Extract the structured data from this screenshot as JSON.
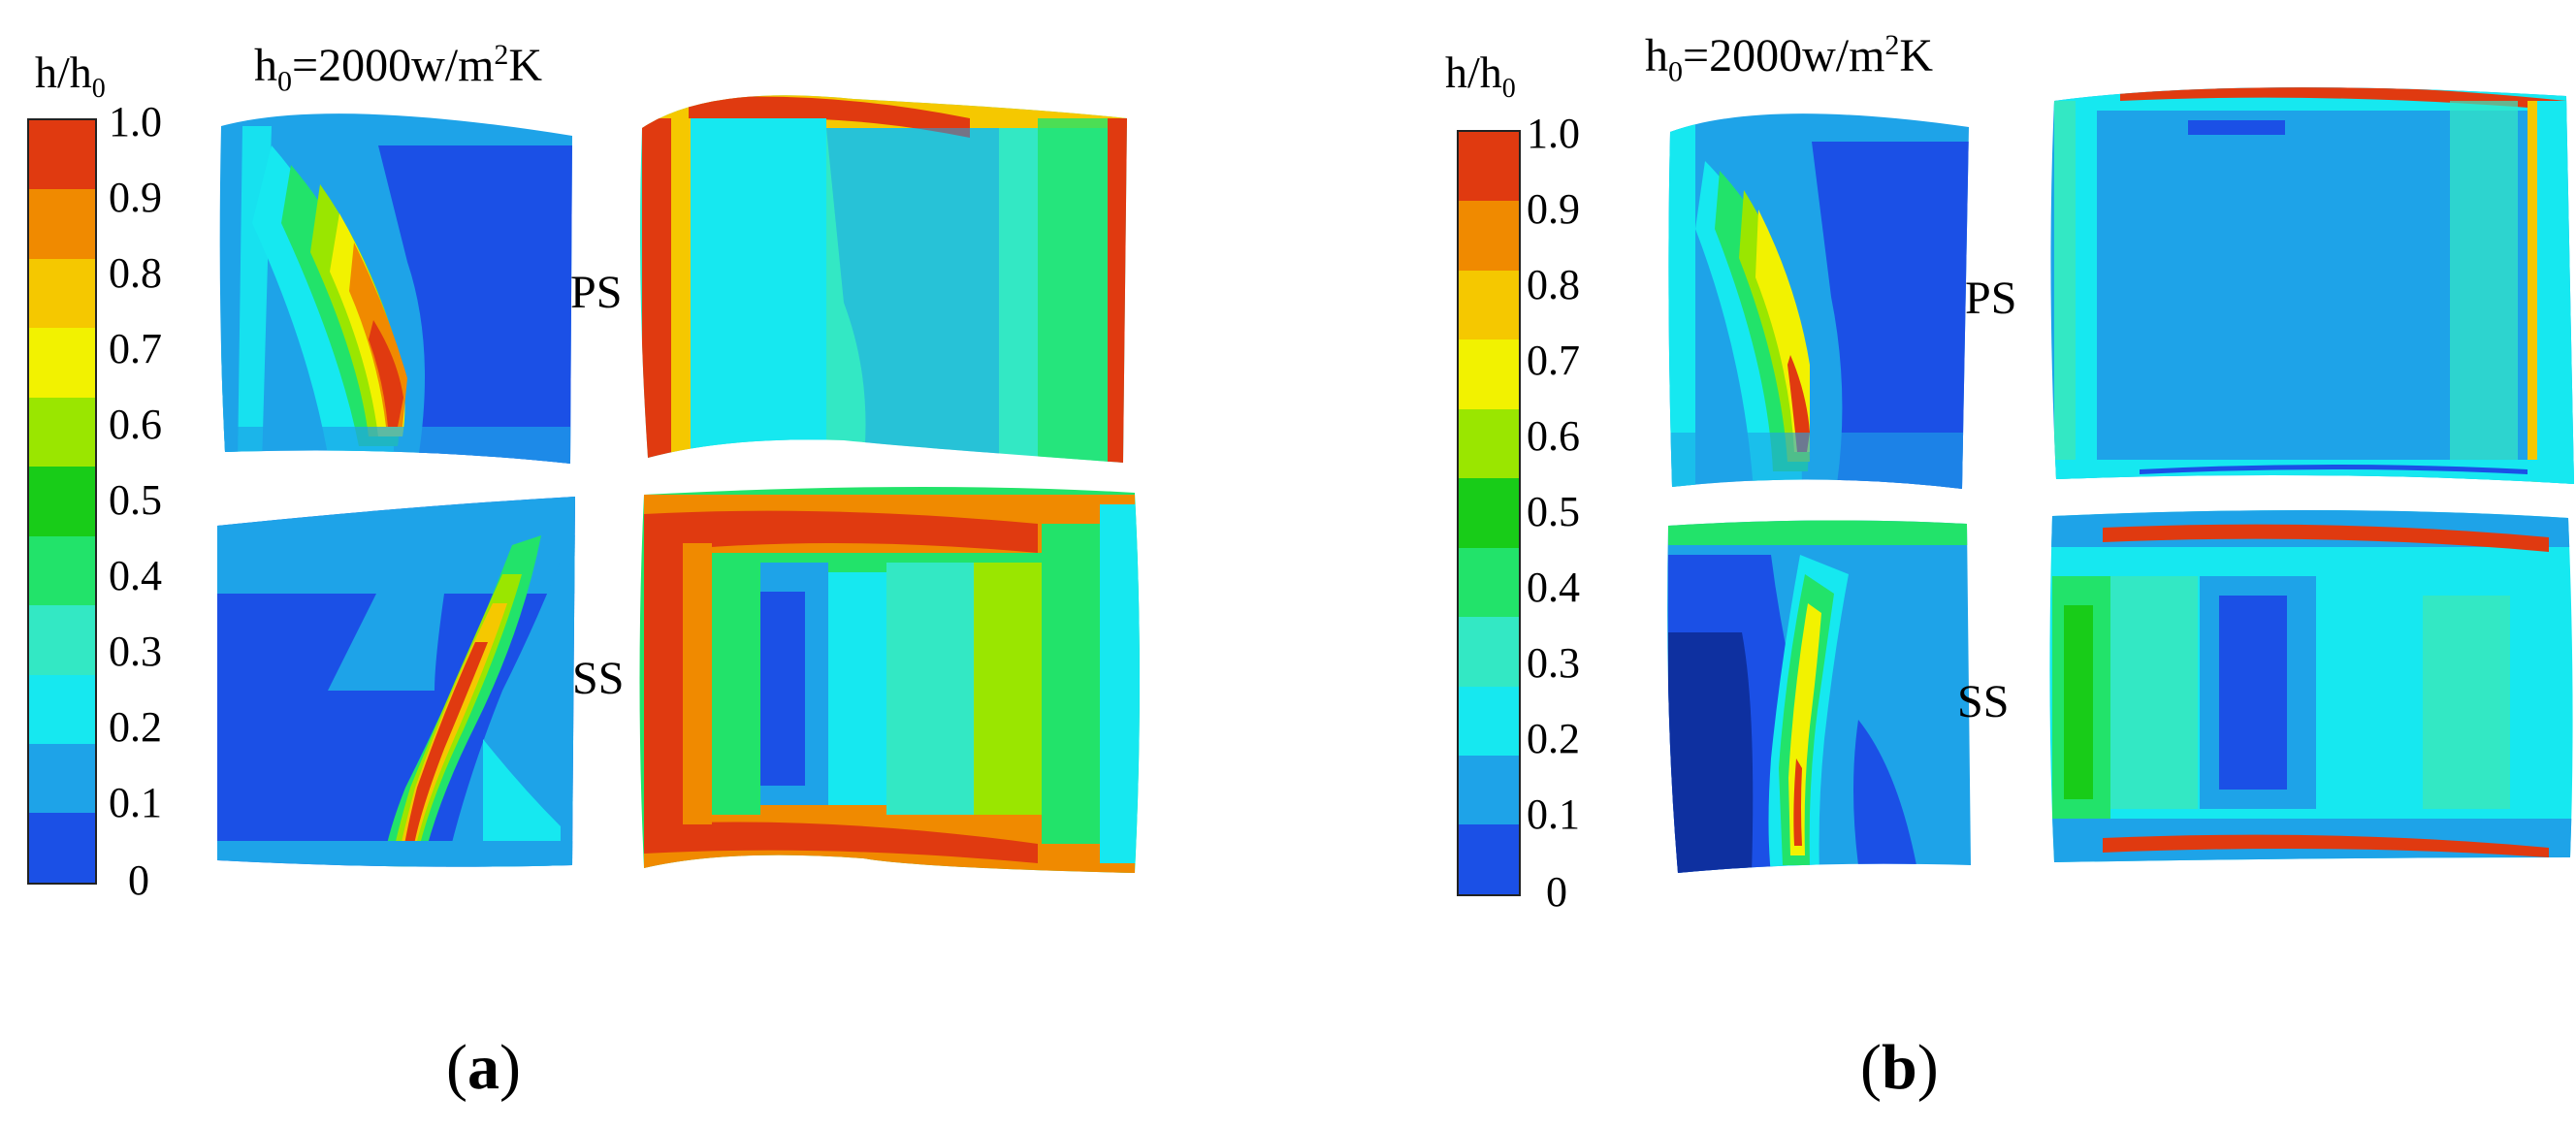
{
  "panels": [
    {
      "id": "a",
      "cb_title_main": "h/h",
      "cb_title_sub": "0",
      "ref_main": "h",
      "ref_sub": "0",
      "ref_mid": "=2000w/m",
      "ref_sup": "2",
      "ref_end": "K",
      "ticks": [
        "1.0",
        "0.9",
        "0.8",
        "0.7",
        "0.6",
        "0.5",
        "0.4",
        "0.3",
        "0.2",
        "0.1",
        "0"
      ],
      "ps_label": "PS",
      "ss_label": "SS",
      "cap_open": "(",
      "cap_letter": "a",
      "cap_close": ")"
    },
    {
      "id": "b",
      "cb_title_main": "h/h",
      "cb_title_sub": "0",
      "ref_main": "h",
      "ref_sub": "0",
      "ref_mid": "=2000w/m",
      "ref_sup": "2",
      "ref_end": "K",
      "ticks": [
        "1.0",
        "0.9",
        "0.8",
        "0.7",
        "0.6",
        "0.5",
        "0.4",
        "0.3",
        "0.2",
        "0.1",
        "0"
      ],
      "ps_label": "PS",
      "ss_label": "SS",
      "cap_open": "(",
      "cap_letter": "b",
      "cap_close": ")"
    }
  ],
  "colorbar_colors": [
    "#e03a10",
    "#f08a00",
    "#f5c800",
    "#f2f200",
    "#9ae600",
    "#18cc18",
    "#22e36a",
    "#33e8c4",
    "#16e8f0",
    "#1ea3e8",
    "#1b50e6"
  ]
}
